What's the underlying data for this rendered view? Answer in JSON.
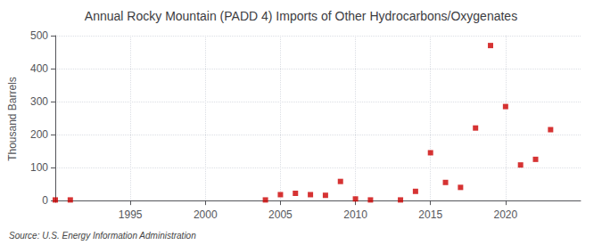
{
  "chart_data": {
    "type": "scatter",
    "title": "Annual Rocky Mountain (PADD 4) Imports of Other Hydrocarbons/Oxygenates",
    "ylabel": "Thousand Barrels",
    "source": "Source: U.S. Energy Information Administration",
    "x": [
      1990,
      1991,
      2004,
      2005,
      2006,
      2007,
      2008,
      2009,
      2010,
      2011,
      2013,
      2014,
      2015,
      2016,
      2017,
      2018,
      2019,
      2020,
      2021,
      2022,
      2023
    ],
    "values": [
      2,
      2,
      2,
      18,
      22,
      18,
      16,
      58,
      5,
      2,
      2,
      28,
      145,
      55,
      40,
      220,
      470,
      285,
      108,
      125,
      215
    ],
    "color": "#cc0000",
    "marker": "square",
    "xlim": [
      1990,
      2025
    ],
    "xticks": [
      1995,
      2000,
      2005,
      2010,
      2015,
      2020
    ],
    "ylim": [
      -5,
      500
    ],
    "yticks": [
      0,
      100,
      200,
      300,
      400,
      500
    ],
    "grid": true
  }
}
